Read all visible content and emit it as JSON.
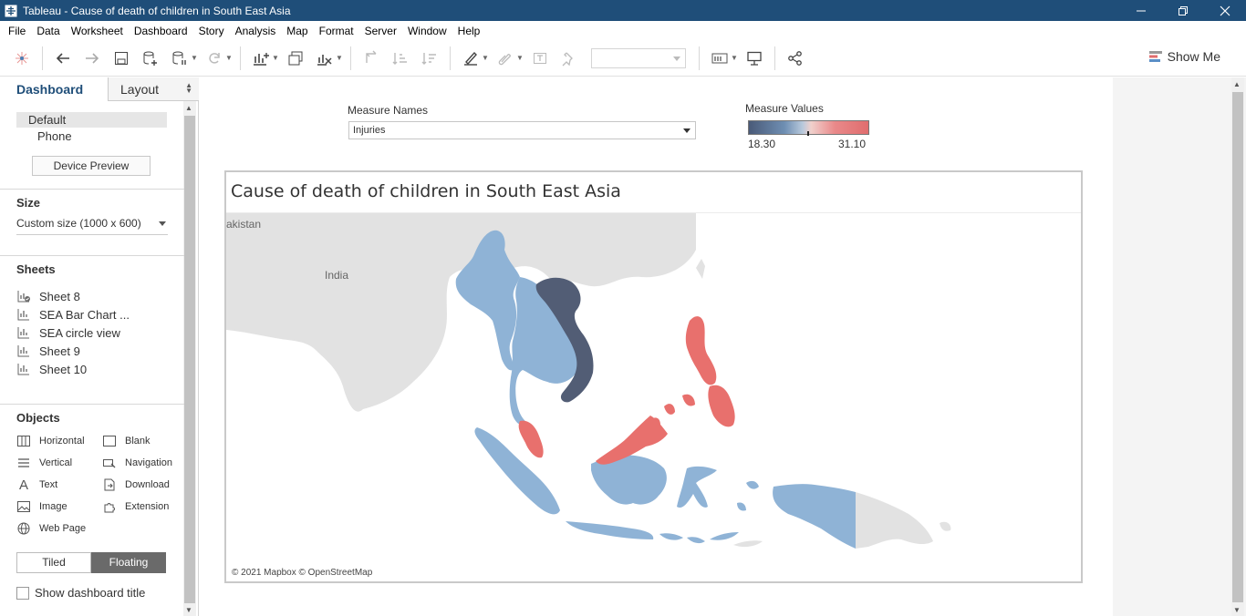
{
  "window": {
    "title": "Tableau - Cause of death of children in South East Asia"
  },
  "menu": [
    "File",
    "Data",
    "Worksheet",
    "Dashboard",
    "Story",
    "Analysis",
    "Map",
    "Format",
    "Server",
    "Window",
    "Help"
  ],
  "toolbar": {
    "show_me_label": "Show Me"
  },
  "left_pane": {
    "tabs": {
      "dashboard": "Dashboard",
      "layout": "Layout"
    },
    "devices": {
      "default": "Default",
      "phone": "Phone",
      "preview_button": "Device Preview"
    },
    "size": {
      "title": "Size",
      "value": "Custom size (1000 x 600)"
    },
    "sheets": {
      "title": "Sheets",
      "items": [
        "Sheet 8",
        "SEA Bar Chart ...",
        "SEA circle view",
        "Sheet 9",
        "Sheet 10"
      ]
    },
    "objects": {
      "title": "Objects",
      "items": {
        "horizontal": "Horizontal",
        "blank": "Blank",
        "vertical": "Vertical",
        "navigation": "Navigation",
        "text": "Text",
        "download": "Download",
        "image": "Image",
        "extension": "Extension",
        "web_page": "Web Page"
      }
    },
    "placement": {
      "tiled": "Tiled",
      "floating": "Floating"
    },
    "show_dashboard_title": "Show dashboard title"
  },
  "dashboard": {
    "filter": {
      "label": "Measure Names",
      "value": "Injuries"
    },
    "legend": {
      "label": "Measure Values",
      "min": "18.30",
      "max": "31.10",
      "colors": [
        "#4a5a78",
        "#6f8fb3",
        "#b8c9dc",
        "#f0d0cc",
        "#e9898a",
        "#e06d6e"
      ]
    },
    "map": {
      "title": "Cause of death of children in South East Asia",
      "labels": {
        "india": "India",
        "pakistan": "akistan"
      },
      "copyright": "© 2021 Mapbox © OpenStreetMap",
      "colors": {
        "high": "#e8706d",
        "mid": "#8fb3d6",
        "low": "#525d75",
        "land": "#e2e2e2"
      }
    }
  }
}
